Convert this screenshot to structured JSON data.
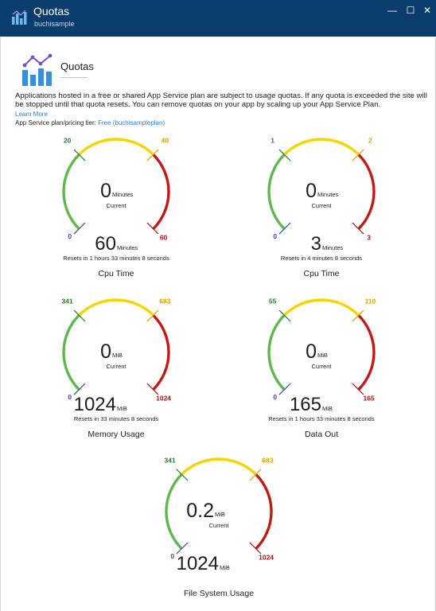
{
  "window": {
    "title": "Quotas",
    "subtitle": "buchisample",
    "controls": {
      "minimize": "—",
      "maximize": "☐",
      "close": "✕"
    }
  },
  "header": {
    "title": "Quotas",
    "icon": "quota-chart-icon"
  },
  "description": "Applications hosted in a free or shared App Service plan are subject to usage quotas. If any quota is exceeded the site will be stopped until that quota resets. You can remove quotas on your app by scaling up your App Service Plan.",
  "learn_more": "Learn More",
  "tier": {
    "label": "App Service plan/pricing tier: ",
    "value": "Free (buchisampleplan)"
  },
  "colors": {
    "green": "#5fb84d",
    "yellow": "#f5d500",
    "red": "#c11b17",
    "titlebar": "#0a3d6b",
    "link": "#2f7fd3"
  },
  "gauges": [
    {
      "name": "Cpu Time",
      "current": "0",
      "unit": "Minutes",
      "current_label": "Current",
      "min": "0",
      "warn": "20",
      "high": "40",
      "limit": "60",
      "max_value": "60",
      "reset": "Resets in 1 hours 33 minutes 8 seconds"
    },
    {
      "name": "Cpu Time",
      "current": "0",
      "unit": "Minutes",
      "current_label": "Current",
      "min": "0",
      "warn": "1",
      "high": "2",
      "limit": "3",
      "max_value": "3",
      "reset": "Resets in 4 minutes 8 seconds"
    },
    {
      "name": "Memory Usage",
      "current": "0",
      "unit": "MiB",
      "current_label": "Current",
      "min": "0",
      "warn": "341",
      "high": "683",
      "limit": "1024",
      "max_value": "1024",
      "reset": "Resets in 33 minutes 8 seconds"
    },
    {
      "name": "Data Out",
      "current": "0",
      "unit": "MiB",
      "current_label": "Current",
      "min": "0",
      "warn": "55",
      "high": "110",
      "limit": "165",
      "max_value": "165",
      "reset": "Resets in 1 hours 33 minutes 8 seconds"
    },
    {
      "name": "File System Usage",
      "current": "0.2",
      "unit": "MiB",
      "current_label": "Current",
      "min": "0",
      "warn": "341",
      "high": "683",
      "limit": "1024",
      "max_value": "1024",
      "reset": ""
    }
  ]
}
